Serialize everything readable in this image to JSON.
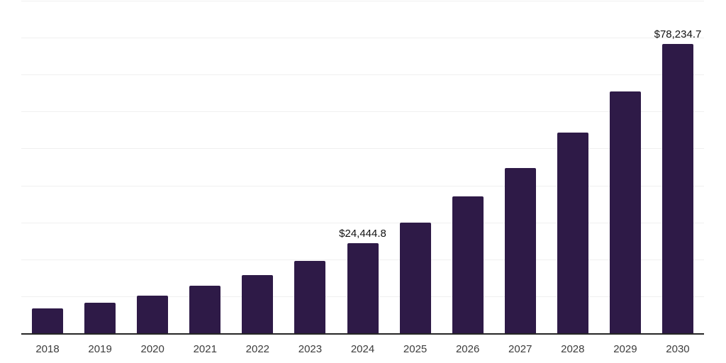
{
  "chart_data": {
    "type": "bar",
    "title": "",
    "xlabel": "",
    "ylabel": "",
    "categories": [
      "2018",
      "2019",
      "2020",
      "2021",
      "2022",
      "2023",
      "2024",
      "2025",
      "2026",
      "2027",
      "2028",
      "2029",
      "2030"
    ],
    "values": [
      6650,
      8180,
      10150,
      12800,
      15800,
      19600,
      24444.8,
      30000,
      37000,
      44800,
      54300,
      65500,
      78234.7
    ],
    "annotations": [
      {
        "category": "2024",
        "text": "$24,444.8"
      },
      {
        "category": "2030",
        "text": "$78,234.7"
      }
    ],
    "ylim": [
      0,
      90000
    ],
    "gridline_step": 10000,
    "grid": "horizontal-only",
    "legend": "none",
    "y_axis_tick_labels": "none"
  },
  "colors": {
    "background": "#ffffff",
    "bar": "#2e1a47",
    "gridline": "#f0f0f0",
    "axis_line": "#262626",
    "tick_label": "#3c3c3c",
    "data_label": "#111111"
  }
}
